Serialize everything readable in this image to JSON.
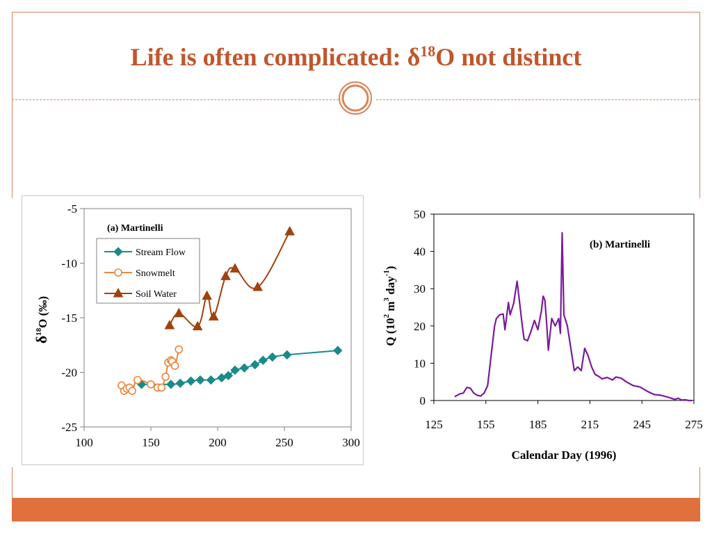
{
  "slide": {
    "title_main": "Life is often complicated: δ",
    "title_sup": "18",
    "title_rest": "O not distinct",
    "accent_color": "#c0562b",
    "bar_color": "#e0703c"
  },
  "chart_data": [
    {
      "type": "scatter",
      "title": "(a) Martinelli",
      "ylabel_main": "δ",
      "ylabel_sup": "18",
      "ylabel_rest": "O (‰)",
      "xlabel": "",
      "xlim": [
        100,
        300
      ],
      "ylim": [
        -25,
        -5
      ],
      "x_ticks": [
        100,
        150,
        200,
        250,
        300
      ],
      "y_ticks": [
        -5,
        -10,
        -15,
        -20,
        -25
      ],
      "grid": false,
      "legend_position": "top-left",
      "series": [
        {
          "name": "Stream Flow",
          "color": "#1a8a8a",
          "marker": "diamond",
          "x": [
            143,
            165,
            172,
            180,
            187,
            195,
            203,
            208,
            213,
            220,
            228,
            234,
            241,
            252,
            290
          ],
          "y": [
            -21.1,
            -21.1,
            -21.0,
            -20.8,
            -20.7,
            -20.7,
            -20.5,
            -20.3,
            -19.8,
            -19.6,
            -19.3,
            -18.9,
            -18.6,
            -18.4,
            -18.0
          ]
        },
        {
          "name": "Snowmelt",
          "color": "#e8873a",
          "marker": "circle-open",
          "x": [
            128,
            130,
            132,
            134,
            136,
            140,
            150,
            155,
            158,
            161,
            163,
            165,
            166,
            168,
            171
          ],
          "y": [
            -21.2,
            -21.7,
            -21.5,
            -21.4,
            -21.7,
            -20.7,
            -21.1,
            -21.4,
            -21.4,
            -20.4,
            -19.1,
            -18.9,
            -19.0,
            -19.4,
            -17.9
          ]
        },
        {
          "name": "Soil Water",
          "color": "#a0420c",
          "marker": "triangle",
          "x": [
            164,
            171,
            185,
            192,
            197,
            206,
            213,
            230,
            254
          ],
          "y": [
            -15.7,
            -14.6,
            -15.8,
            -13.0,
            -14.9,
            -11.2,
            -10.5,
            -12.2,
            -7.1
          ]
        }
      ]
    },
    {
      "type": "line",
      "title": "(b) Martinelli",
      "xlabel": "Calendar Day (1996)",
      "ylabel_main": "Q (10",
      "ylabel_sup1": "2",
      "ylabel_mid": " m",
      "ylabel_sup2": "3",
      "ylabel_mid2": " day",
      "ylabel_sup3": "-1",
      "ylabel_end": ")",
      "xlim": [
        125,
        275
      ],
      "ylim": [
        0,
        50
      ],
      "x_ticks": [
        125,
        155,
        185,
        215,
        245,
        275
      ],
      "y_ticks": [
        0,
        10,
        20,
        30,
        40,
        50
      ],
      "grid": false,
      "series": [
        {
          "name": "",
          "color": "#7a1a9a",
          "x": [
            137,
            140,
            142,
            144,
            146,
            148,
            150,
            152,
            154,
            156,
            158,
            160,
            161,
            163,
            165,
            166,
            168,
            169,
            171,
            173,
            174,
            176,
            177,
            179,
            181,
            183,
            185,
            187,
            188,
            189,
            190,
            191,
            193,
            195,
            197,
            198,
            199,
            200,
            202,
            204,
            206,
            208,
            210,
            212,
            214,
            216,
            218,
            220,
            222,
            225,
            228,
            230,
            233,
            236,
            240,
            244,
            248,
            252,
            256,
            260,
            264,
            266,
            268,
            270,
            272,
            274
          ],
          "y": [
            1.0,
            1.8,
            2.0,
            3.5,
            3.3,
            2.0,
            1.4,
            1.2,
            2.0,
            4.0,
            12.0,
            20.0,
            22.0,
            23.0,
            23.2,
            19.0,
            26.3,
            23.0,
            26.0,
            32.0,
            28.0,
            20.0,
            16.5,
            16.0,
            18.5,
            21.5,
            19.0,
            24.0,
            28.0,
            27.0,
            21.0,
            13.5,
            22.0,
            20.0,
            22.0,
            18.0,
            45.0,
            23.0,
            20.0,
            14.0,
            8.0,
            9.0,
            8.0,
            14.0,
            12.0,
            9.0,
            7.0,
            6.5,
            5.8,
            6.2,
            5.5,
            6.3,
            6.0,
            5.0,
            4.0,
            3.6,
            2.5,
            1.6,
            1.4,
            0.9,
            0.3,
            0.6,
            0.1,
            0.2,
            0.0,
            0.0
          ]
        }
      ]
    }
  ]
}
